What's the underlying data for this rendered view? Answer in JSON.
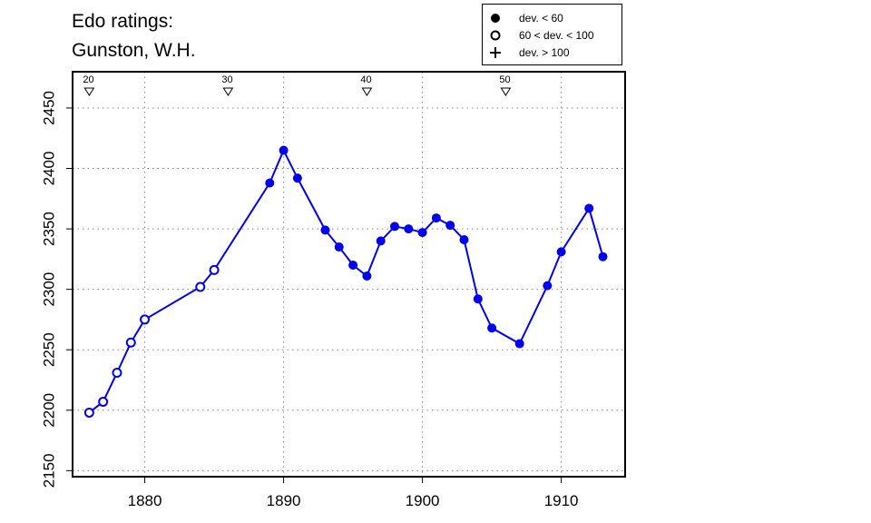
{
  "title_lines": [
    "Edo ratings:",
    "Gunston, W.H."
  ],
  "legend": {
    "items": [
      {
        "symbol": "filled-circle",
        "label": "dev. < 60"
      },
      {
        "symbol": "open-circle",
        "label": "60 < dev. < 100"
      },
      {
        "symbol": "plus",
        "label": "dev. > 100"
      }
    ]
  },
  "colors": {
    "series": "#0000ee",
    "axis": "#000000",
    "grid": "#888888"
  },
  "chart_data": {
    "type": "line",
    "title": "Edo ratings: Gunston, W.H.",
    "xlabel": "",
    "ylabel": "",
    "xlim": [
      1874.8,
      1914.6
    ],
    "ylim": [
      2145,
      2480
    ],
    "x_ticks": [
      1880,
      1890,
      1900,
      1910
    ],
    "y_ticks": [
      2150,
      2200,
      2250,
      2300,
      2350,
      2400,
      2450
    ],
    "grid": true,
    "legend_position": "top-right",
    "age_markers": [
      {
        "x": 1876,
        "label": "20"
      },
      {
        "x": 1886,
        "label": "30"
      },
      {
        "x": 1896,
        "label": "40"
      },
      {
        "x": 1906,
        "label": "50"
      }
    ],
    "series": [
      {
        "points": [
          {
            "x": 1876,
            "y": 2198,
            "dev": "60-100"
          },
          {
            "x": 1877,
            "y": 2207,
            "dev": "60-100"
          },
          {
            "x": 1878,
            "y": 2231,
            "dev": "60-100"
          },
          {
            "x": 1879,
            "y": 2256,
            "dev": "60-100"
          },
          {
            "x": 1880,
            "y": 2275,
            "dev": "60-100"
          },
          {
            "x": 1884,
            "y": 2302,
            "dev": "60-100"
          },
          {
            "x": 1885,
            "y": 2316,
            "dev": "60-100"
          },
          {
            "x": 1889,
            "y": 2388,
            "dev": "<60"
          },
          {
            "x": 1890,
            "y": 2415,
            "dev": "<60"
          },
          {
            "x": 1891,
            "y": 2392,
            "dev": "<60"
          },
          {
            "x": 1893,
            "y": 2349,
            "dev": "<60"
          },
          {
            "x": 1894,
            "y": 2335,
            "dev": "<60"
          },
          {
            "x": 1895,
            "y": 2320,
            "dev": "<60"
          },
          {
            "x": 1896,
            "y": 2311,
            "dev": "<60"
          },
          {
            "x": 1897,
            "y": 2340,
            "dev": "<60"
          },
          {
            "x": 1898,
            "y": 2352,
            "dev": "<60"
          },
          {
            "x": 1899,
            "y": 2350,
            "dev": "<60"
          },
          {
            "x": 1900,
            "y": 2347,
            "dev": "<60"
          },
          {
            "x": 1901,
            "y": 2359,
            "dev": "<60"
          },
          {
            "x": 1902,
            "y": 2353,
            "dev": "<60"
          },
          {
            "x": 1903,
            "y": 2341,
            "dev": "<60"
          },
          {
            "x": 1904,
            "y": 2292,
            "dev": "<60"
          },
          {
            "x": 1905,
            "y": 2268,
            "dev": "<60"
          },
          {
            "x": 1907,
            "y": 2255,
            "dev": "<60"
          },
          {
            "x": 1909,
            "y": 2303,
            "dev": "<60"
          },
          {
            "x": 1910,
            "y": 2331,
            "dev": "<60"
          },
          {
            "x": 1912,
            "y": 2367,
            "dev": "<60"
          },
          {
            "x": 1913,
            "y": 2327,
            "dev": "<60"
          }
        ]
      }
    ]
  }
}
